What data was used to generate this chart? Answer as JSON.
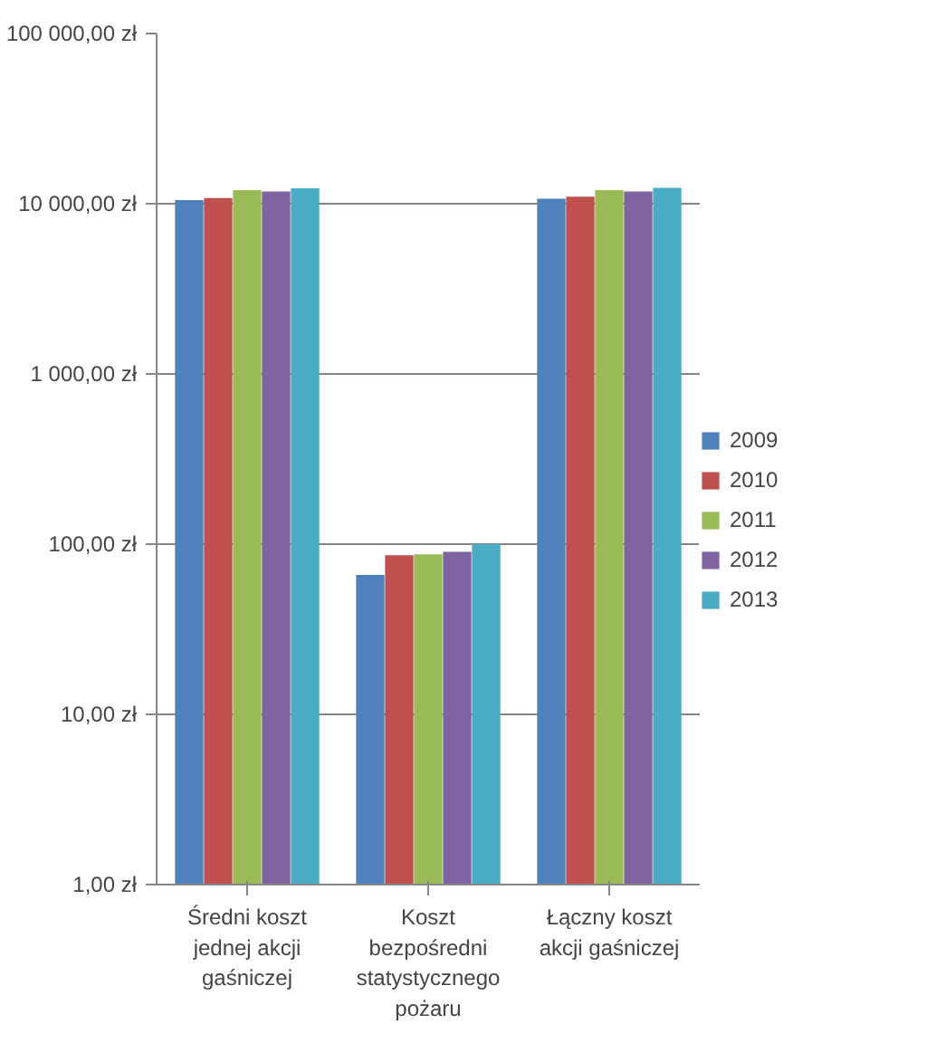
{
  "chart_data": {
    "type": "bar",
    "categories": [
      "Średni koszt jednej akcji gaśniczej",
      "Koszt bezpośredni statystycznego pożaru",
      "Łączny koszt akcji gaśniczej"
    ],
    "series": [
      {
        "name": "2009",
        "color": "#4f81bd",
        "values": [
          10500,
          66,
          10700
        ]
      },
      {
        "name": "2010",
        "color": "#c0504d",
        "values": [
          10800,
          86,
          11000
        ]
      },
      {
        "name": "2011",
        "color": "#9bbb59",
        "values": [
          12000,
          87,
          12000
        ]
      },
      {
        "name": "2012",
        "color": "#8064a2",
        "values": [
          11800,
          90,
          11800
        ]
      },
      {
        "name": "2013",
        "color": "#4bacc6",
        "values": [
          12300,
          100,
          12400
        ]
      }
    ],
    "log": "y",
    "ylim": [
      1,
      100000
    ],
    "yticks": [
      {
        "value": 1,
        "label": "1,00 zł"
      },
      {
        "value": 10,
        "label": "10,00 zł"
      },
      {
        "value": 100,
        "label": "100,00 zł"
      },
      {
        "value": 1000,
        "label": "1 000,00 zł"
      },
      {
        "value": 10000,
        "label": "10 000,00 zł"
      },
      {
        "value": 100000,
        "label": "100 000,00 zł"
      }
    ],
    "grid": "y",
    "legend": "right"
  }
}
